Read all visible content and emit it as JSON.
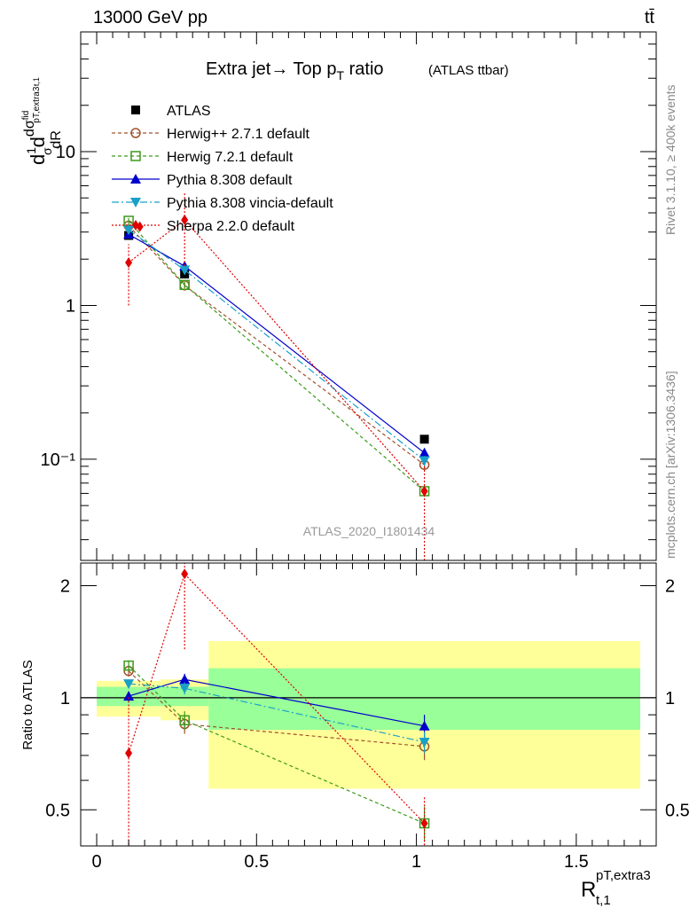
{
  "header": {
    "left": "13000 GeV pp",
    "right": "tt̄"
  },
  "side": {
    "rivet": "Rivet 3.1.10, ≥ 400k events",
    "mcplots": "mcplots.cern.ch [arXiv:1306.3436]"
  },
  "plot_title": {
    "main": "Extra jet→ Top p",
    "sub": "T",
    "rest": " ratio",
    "small": "(ATLAS ttbar)"
  },
  "ylabel_main": "dσ/dR (normalized)",
  "ylabel_ratio": "Ratio to ATLAS",
  "xlabel": {
    "base": "R",
    "sup": "pT,extra3",
    "sub": "t,1"
  },
  "watermark": "ATLAS_2020_I1801434",
  "colors": {
    "atlas": "#000000",
    "herwigpp": "#a0522d",
    "herwig7": "#3b9a1a",
    "pythia": "#0000cc",
    "vincia": "#1aa0c8",
    "sherpa": "#e00000",
    "band_inner": "#99ff99",
    "band_outer": "#ffff99"
  },
  "chart_data": [
    {
      "type": "line",
      "panel": "main",
      "yscale": "log",
      "xlim": [
        -0.05,
        1.75
      ],
      "ylim": [
        0.022,
        60
      ],
      "yticks": [
        0.1,
        1,
        10
      ],
      "ytick_labels": [
        "10⁻¹",
        "1",
        "10"
      ],
      "series": [
        {
          "name": "ATLAS",
          "style": "square-filled",
          "x": [
            0.1,
            0.275,
            1.025
          ],
          "y": [
            2.85,
            1.6,
            0.135
          ],
          "yerr": [
            0.1,
            0.06,
            0.008
          ]
        },
        {
          "name": "Herwig++ 2.7.1 default",
          "style": "circle-open-dashed",
          "x": [
            0.1,
            0.275,
            1.025
          ],
          "y": [
            3.3,
            1.35,
            0.092
          ],
          "yerr": [
            0.15,
            0.06,
            0.006
          ]
        },
        {
          "name": "Herwig 7.2.1 default",
          "style": "square-open-dashed",
          "x": [
            0.1,
            0.275,
            1.025
          ],
          "y": [
            3.55,
            1.36,
            0.062
          ],
          "yerr": [
            0.15,
            0.06,
            0.005
          ]
        },
        {
          "name": "Pythia 8.308 default",
          "style": "triangle-up-solid",
          "x": [
            0.1,
            0.275,
            1.025
          ],
          "y": [
            2.9,
            1.8,
            0.11
          ],
          "yerr": [
            0.1,
            0.07,
            0.008
          ]
        },
        {
          "name": "Pythia 8.308 vincia-default",
          "style": "triangle-down-dashdot",
          "x": [
            0.1,
            0.275,
            1.025
          ],
          "y": [
            3.1,
            1.7,
            0.098
          ],
          "yerr": [
            0.1,
            0.06,
            0.007
          ]
        },
        {
          "name": "Sherpa 2.2.0 default",
          "style": "diamond-dotted",
          "x": [
            0.1,
            0.275,
            1.025
          ],
          "y": [
            1.9,
            3.6,
            0.062
          ],
          "yerr_lo": [
            0.9,
            1.8,
            0.04
          ],
          "yerr_hi": [
            0.6,
            1.8,
            0.03
          ]
        }
      ],
      "sherpa_extra_point": {
        "x": 0.135,
        "y": 3.25
      }
    },
    {
      "type": "line",
      "panel": "ratio",
      "ylabel": "Ratio to ATLAS",
      "xlim": [
        -0.05,
        1.75
      ],
      "ylim": [
        0.4,
        2.3
      ],
      "yticks": [
        0.5,
        1,
        2
      ],
      "ytick_labels": [
        "0.5",
        "1",
        "2"
      ],
      "xticks": [
        0,
        0.5,
        1,
        1.5
      ],
      "xtick_labels": [
        "0",
        "0.5",
        "1",
        "1.5"
      ],
      "bands": [
        {
          "x0": 0.0,
          "x1": 0.2,
          "inner": [
            0.95,
            1.07
          ],
          "outer": [
            0.89,
            1.11
          ]
        },
        {
          "x0": 0.2,
          "x1": 0.35,
          "inner": [
            0.95,
            1.07
          ],
          "outer": [
            0.87,
            1.12
          ]
        },
        {
          "x0": 0.35,
          "x1": 1.7,
          "inner": [
            0.82,
            1.2
          ],
          "outer": [
            0.57,
            1.42
          ]
        }
      ],
      "series": [
        {
          "name": "Herwig++ 2.7.1 default",
          "x": [
            0.1,
            0.275,
            1.025
          ],
          "y": [
            1.18,
            0.85,
            0.74
          ],
          "yerr": [
            0.04,
            0.05,
            0.06
          ]
        },
        {
          "name": "Herwig 7.2.1 default",
          "x": [
            0.1,
            0.275,
            1.025
          ],
          "y": [
            1.22,
            0.87,
            0.46
          ],
          "yerr": [
            0.04,
            0.05,
            0.05
          ]
        },
        {
          "name": "Pythia 8.308 default",
          "x": [
            0.1,
            0.275,
            1.025
          ],
          "y": [
            1.01,
            1.12,
            0.84
          ],
          "yerr": [
            0.03,
            0.04,
            0.06
          ]
        },
        {
          "name": "Pythia 8.308 vincia-default",
          "x": [
            0.1,
            0.275,
            1.025
          ],
          "y": [
            1.09,
            1.06,
            0.76
          ],
          "yerr": [
            0.03,
            0.04,
            0.05
          ]
        },
        {
          "name": "Sherpa 2.2.0 default",
          "x": [
            0.1,
            0.275,
            1.025
          ],
          "y": [
            0.71,
            2.15,
            0.46
          ],
          "yerr_lo": [
            0.4,
            0.8,
            0.1
          ],
          "yerr_hi": [
            0.3,
            0.6,
            0.08
          ]
        }
      ]
    }
  ]
}
